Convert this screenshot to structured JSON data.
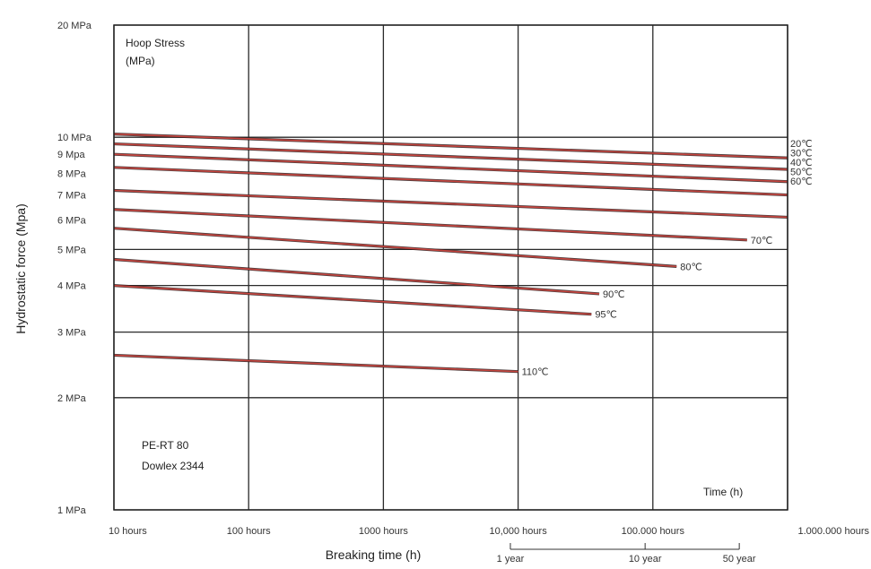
{
  "chart_data": {
    "type": "line",
    "xlabel": "Breaking time (h)",
    "ylabel": "Hydrostatic force (Mpa)",
    "x_scale": "log",
    "y_scale": "log",
    "xlim": [
      10,
      1000000
    ],
    "ylim": [
      1,
      20
    ],
    "grid": true,
    "x_ticks": [
      {
        "value": 10,
        "label": "10 hours"
      },
      {
        "value": 100,
        "label": "100 hours"
      },
      {
        "value": 1000,
        "label": "1000 hours"
      },
      {
        "value": 10000,
        "label": "10,000 hours"
      },
      {
        "value": 100000,
        "label": "100.000 hours"
      },
      {
        "value": 1000000,
        "label": "1.000.000 hours"
      }
    ],
    "y_ticks": [
      {
        "value": 20,
        "label": "20 MPa"
      },
      {
        "value": 10,
        "label": "10 MPa"
      },
      {
        "value": 9,
        "label": "9 Mpa"
      },
      {
        "value": 8,
        "label": "8 MPa"
      },
      {
        "value": 7,
        "label": "7 MPa"
      },
      {
        "value": 6,
        "label": "6 MPa"
      },
      {
        "value": 5,
        "label": "5 MPa"
      },
      {
        "value": 4,
        "label": "4 MPa"
      },
      {
        "value": 3,
        "label": "3 MPa"
      },
      {
        "value": 2,
        "label": "2 MPa"
      },
      {
        "value": 1,
        "label": "1 MPa"
      }
    ],
    "series": [
      {
        "name": "20℃",
        "x": [
          10,
          1000000
        ],
        "y": [
          10.2,
          8.8
        ]
      },
      {
        "name": "30℃",
        "x": [
          10,
          1000000
        ],
        "y": [
          9.6,
          8.2
        ]
      },
      {
        "name": "40℃",
        "x": [
          10,
          1000000
        ],
        "y": [
          9.0,
          7.6
        ]
      },
      {
        "name": "50℃",
        "x": [
          10,
          1000000
        ],
        "y": [
          8.3,
          7.0
        ]
      },
      {
        "name": "60℃",
        "x": [
          10,
          1000000
        ],
        "y": [
          7.2,
          6.1
        ]
      },
      {
        "name": "70℃",
        "x": [
          10,
          500000
        ],
        "y": [
          6.4,
          5.3
        ]
      },
      {
        "name": "80℃",
        "x": [
          10,
          150000
        ],
        "y": [
          5.7,
          4.5
        ]
      },
      {
        "name": "90℃",
        "x": [
          10,
          40000
        ],
        "y": [
          4.7,
          3.8
        ]
      },
      {
        "name": "95℃",
        "x": [
          10,
          35000
        ],
        "y": [
          4.0,
          3.35
        ]
      },
      {
        "name": "110℃",
        "x": [
          10,
          10000
        ],
        "y": [
          2.6,
          2.35
        ]
      }
    ],
    "series_color": "#c8453f",
    "annotations": {
      "top_left": "Hoop Stress",
      "top_left_unit": "(MPa)",
      "bottom_left_line1": "PE-RT 80",
      "bottom_left_line2": "Dowlex 2344",
      "bottom_right": "Time (h)"
    },
    "time_scale": [
      {
        "value": 8760,
        "label": "1 year"
      },
      {
        "value": 87600,
        "label": "10 year"
      },
      {
        "value": 438000,
        "label": "50 year"
      }
    ]
  }
}
